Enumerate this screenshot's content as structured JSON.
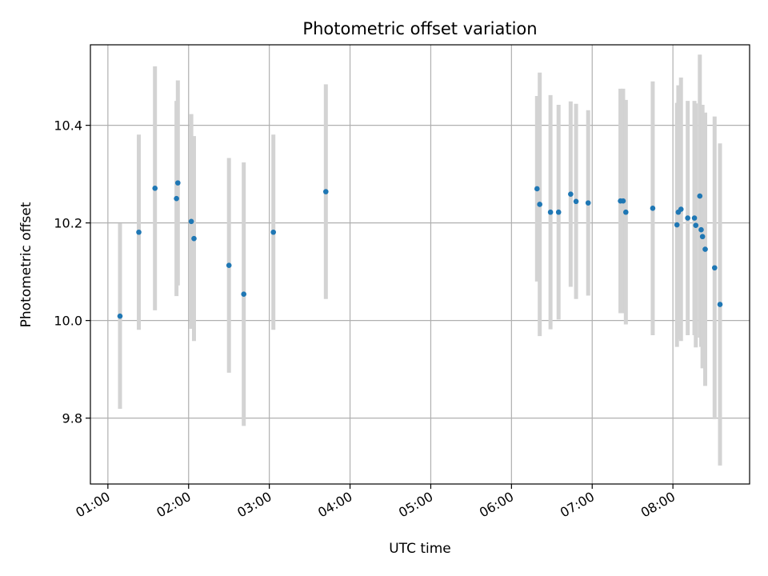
{
  "chart_data": {
    "type": "scatter",
    "title": "Photometric offset variation",
    "xlabel": "UTC time",
    "ylabel": "Photometric offset",
    "x_ticks": [
      "01:00",
      "02:00",
      "03:00",
      "04:00",
      "05:00",
      "06:00",
      "07:00",
      "08:00"
    ],
    "y_ticks": [
      "9.8",
      "10.0",
      "10.2",
      "10.4"
    ],
    "xlim": [
      "00:47",
      "08:57"
    ],
    "ylim": [
      9.665,
      10.565
    ],
    "grid": true,
    "colors": {
      "point": "#1f77b4",
      "errorbar": "#d3d3d3",
      "grid": "#b0b0b0"
    },
    "series": [
      {
        "points": [
          {
            "x": "01:09",
            "y": 10.009,
            "yerr": 0.19
          },
          {
            "x": "01:23",
            "y": 10.181,
            "yerr": 0.2
          },
          {
            "x": "01:35",
            "y": 10.271,
            "yerr": 0.25
          },
          {
            "x": "01:51",
            "y": 10.25,
            "yerr": 0.2
          },
          {
            "x": "01:52",
            "y": 10.282,
            "yerr": 0.21
          },
          {
            "x": "02:02",
            "y": 10.203,
            "yerr": 0.22
          },
          {
            "x": "02:04",
            "y": 10.168,
            "yerr": 0.21
          },
          {
            "x": "02:30",
            "y": 10.113,
            "yerr": 0.22
          },
          {
            "x": "02:41",
            "y": 10.054,
            "yerr": 0.27
          },
          {
            "x": "03:03",
            "y": 10.181,
            "yerr": 0.2
          },
          {
            "x": "03:42",
            "y": 10.264,
            "yerr": 0.22
          },
          {
            "x": "06:19",
            "y": 10.27,
            "yerr": 0.19
          },
          {
            "x": "06:21",
            "y": 10.238,
            "yerr": 0.27
          },
          {
            "x": "06:29",
            "y": 10.222,
            "yerr": 0.24
          },
          {
            "x": "06:35",
            "y": 10.222,
            "yerr": 0.22
          },
          {
            "x": "06:44",
            "y": 10.259,
            "yerr": 0.19
          },
          {
            "x": "06:48",
            "y": 10.244,
            "yerr": 0.2
          },
          {
            "x": "06:57",
            "y": 10.241,
            "yerr": 0.19
          },
          {
            "x": "07:21",
            "y": 10.245,
            "yerr": 0.23
          },
          {
            "x": "07:23",
            "y": 10.245,
            "yerr": 0.23
          },
          {
            "x": "07:25",
            "y": 10.222,
            "yerr": 0.23
          },
          {
            "x": "07:45",
            "y": 10.23,
            "yerr": 0.26
          },
          {
            "x": "08:03",
            "y": 10.196,
            "yerr": 0.25
          },
          {
            "x": "08:04",
            "y": 10.222,
            "yerr": 0.26
          },
          {
            "x": "08:06",
            "y": 10.228,
            "yerr": 0.27
          },
          {
            "x": "08:11",
            "y": 10.21,
            "yerr": 0.24
          },
          {
            "x": "08:16",
            "y": 10.21,
            "yerr": 0.24
          },
          {
            "x": "08:17",
            "y": 10.195,
            "yerr": 0.25
          },
          {
            "x": "08:20",
            "y": 10.255,
            "yerr": 0.29
          },
          {
            "x": "08:21",
            "y": 10.186,
            "yerr": 0.24
          },
          {
            "x": "08:22",
            "y": 10.172,
            "yerr": 0.27
          },
          {
            "x": "08:24",
            "y": 10.146,
            "yerr": 0.28
          },
          {
            "x": "08:31",
            "y": 10.108,
            "yerr": 0.31
          },
          {
            "x": "08:35",
            "y": 10.033,
            "yerr": 0.33
          }
        ]
      }
    ]
  }
}
